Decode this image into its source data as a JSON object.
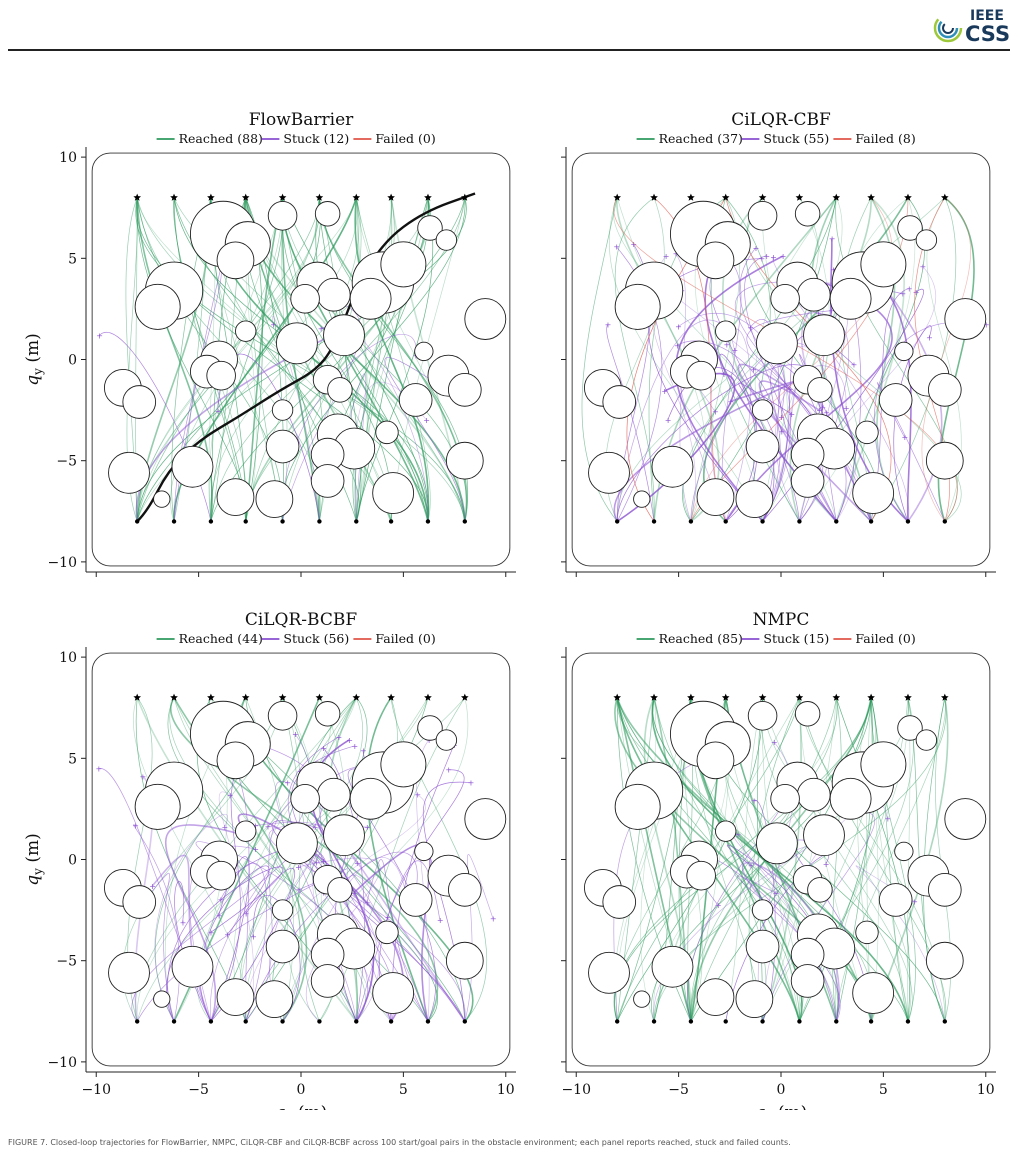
{
  "header": {
    "logo": {
      "line1": "IEEE",
      "line2": "CSS"
    }
  },
  "caption": "FIGURE 7. Closed-loop trajectories for FlowBarrier, NMPC, CiLQR-CBF and CiLQR-BCBF across 100 start/goal pairs in the obstacle environment; each panel reports reached, stuck and failed counts.",
  "axes": {
    "xlabel": "q",
    "xlabel_sub": "x",
    "xlabel_unit": " (m)",
    "ylabel": "q",
    "ylabel_sub": "y",
    "ylabel_unit": " (m)",
    "xlim": [
      -10.5,
      10.5
    ],
    "ylim": [
      -10.5,
      10.5
    ],
    "xticks": [
      -10,
      -5,
      0,
      5,
      10
    ],
    "yticks": [
      -10,
      -5,
      0,
      5,
      10
    ]
  },
  "colors": {
    "reached": "#2e9a5e",
    "stuck": "#8a4fd0",
    "failed": "#e05548",
    "obstacle": "#222222",
    "highlight": "#111111"
  },
  "markers": {
    "starts_y": -8,
    "goals_y": 8,
    "x_positions": [
      -8,
      -6.2,
      -4.4,
      -2.7,
      -0.9,
      0.9,
      2.7,
      4.4,
      6.2,
      8
    ]
  },
  "obstacles": {
    "circles": [
      {
        "x": -3.8,
        "y": 6.2,
        "r": 1.6
      },
      {
        "x": -2.6,
        "y": 5.7,
        "r": 1.1
      },
      {
        "x": -3.2,
        "y": 4.9,
        "r": 0.9
      },
      {
        "x": -0.9,
        "y": 7.1,
        "r": 0.7
      },
      {
        "x": 1.3,
        "y": 7.2,
        "r": 0.6
      },
      {
        "x": -6.2,
        "y": 3.4,
        "r": 1.4
      },
      {
        "x": -7.0,
        "y": 2.6,
        "r": 1.1
      },
      {
        "x": 4.0,
        "y": 3.8,
        "r": 1.5
      },
      {
        "x": 5.0,
        "y": 4.7,
        "r": 1.1
      },
      {
        "x": 3.4,
        "y": 3.0,
        "r": 1.0
      },
      {
        "x": 6.3,
        "y": 6.5,
        "r": 0.6
      },
      {
        "x": 7.1,
        "y": 5.9,
        "r": 0.5
      },
      {
        "x": 0.8,
        "y": 3.8,
        "r": 1.0
      },
      {
        "x": 1.6,
        "y": 3.2,
        "r": 0.8
      },
      {
        "x": 0.2,
        "y": 3.0,
        "r": 0.7
      },
      {
        "x": -2.7,
        "y": 1.4,
        "r": 0.5
      },
      {
        "x": -0.2,
        "y": 0.8,
        "r": 1.0
      },
      {
        "x": 2.1,
        "y": 1.2,
        "r": 1.0
      },
      {
        "x": -4.0,
        "y": 0.0,
        "r": 0.9
      },
      {
        "x": -4.6,
        "y": -0.6,
        "r": 0.8
      },
      {
        "x": -3.9,
        "y": -0.8,
        "r": 0.7
      },
      {
        "x": 1.3,
        "y": -1.0,
        "r": 0.7
      },
      {
        "x": 1.9,
        "y": -1.5,
        "r": 0.6
      },
      {
        "x": -8.7,
        "y": -1.4,
        "r": 0.9
      },
      {
        "x": -7.9,
        "y": -2.1,
        "r": 0.8
      },
      {
        "x": 7.2,
        "y": -0.8,
        "r": 1.0
      },
      {
        "x": 8.0,
        "y": -1.5,
        "r": 0.8
      },
      {
        "x": 9.0,
        "y": 2.0,
        "r": 1.0
      },
      {
        "x": 5.6,
        "y": -2.0,
        "r": 0.8
      },
      {
        "x": 6.0,
        "y": 0.4,
        "r": 0.45
      },
      {
        "x": -0.9,
        "y": -2.5,
        "r": 0.5
      },
      {
        "x": -0.9,
        "y": -4.3,
        "r": 0.8
      },
      {
        "x": 1.8,
        "y": -3.7,
        "r": 1.0
      },
      {
        "x": 2.6,
        "y": -4.4,
        "r": 1.0
      },
      {
        "x": 1.3,
        "y": -4.7,
        "r": 0.8
      },
      {
        "x": 4.2,
        "y": -3.6,
        "r": 0.55
      },
      {
        "x": -5.3,
        "y": -5.3,
        "r": 1.0
      },
      {
        "x": -8.4,
        "y": -5.6,
        "r": 1.0
      },
      {
        "x": 8.0,
        "y": -5.0,
        "r": 0.9
      },
      {
        "x": -6.8,
        "y": -6.9,
        "r": 0.4
      },
      {
        "x": -3.2,
        "y": -6.8,
        "r": 0.9
      },
      {
        "x": -1.3,
        "y": -6.9,
        "r": 0.9
      },
      {
        "x": 1.3,
        "y": -6.0,
        "r": 0.8
      },
      {
        "x": 4.5,
        "y": -6.6,
        "r": 1.0
      }
    ]
  },
  "chart_data": [
    {
      "type": "scatter",
      "title": "FlowBarrier",
      "legend": "top-center",
      "series": [
        {
          "name": "Reached (88)",
          "count": 88
        },
        {
          "name": "Stuck (12)",
          "count": 12
        },
        {
          "name": "Failed (0)",
          "count": 0
        }
      ],
      "highlight_path": [
        [
          -8,
          -8
        ],
        [
          -7.5,
          -7.5
        ],
        [
          -6.5,
          -5.5
        ],
        [
          -5,
          -4
        ],
        [
          -3,
          -2.8
        ],
        [
          -1,
          -1.5
        ],
        [
          0.8,
          -0.5
        ],
        [
          1.7,
          0.8
        ],
        [
          2.6,
          3.3
        ],
        [
          4,
          5.8
        ],
        [
          6,
          7.3
        ],
        [
          8.5,
          8.2
        ]
      ]
    },
    {
      "type": "scatter",
      "title": "CiLQR-CBF",
      "legend": "top-center",
      "series": [
        {
          "name": "Reached (37)",
          "count": 37
        },
        {
          "name": "Stuck (55)",
          "count": 55
        },
        {
          "name": "Failed (8)",
          "count": 8
        }
      ]
    },
    {
      "type": "scatter",
      "title": "CiLQR-BCBF",
      "legend": "top-center",
      "series": [
        {
          "name": "Reached (44)",
          "count": 44
        },
        {
          "name": "Stuck (56)",
          "count": 56
        },
        {
          "name": "Failed (0)",
          "count": 0
        }
      ]
    },
    {
      "type": "scatter",
      "title": "NMPC",
      "legend": "top-center",
      "series": [
        {
          "name": "Reached (85)",
          "count": 85
        },
        {
          "name": "Stuck (15)",
          "count": 15
        },
        {
          "name": "Failed (0)",
          "count": 0
        }
      ]
    }
  ]
}
